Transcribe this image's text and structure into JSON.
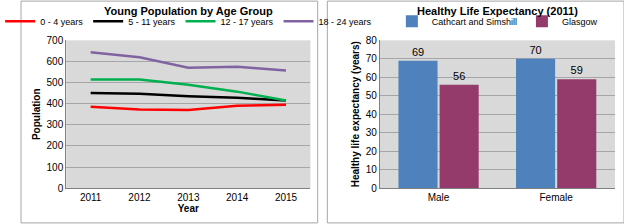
{
  "chart_data": [
    {
      "type": "line",
      "title": "Young Population by Age Group",
      "x_label": "Year",
      "y_label": "Population",
      "categories": [
        "2011",
        "2012",
        "2013",
        "2014",
        "2015"
      ],
      "series": [
        {
          "name": "0 - 4 years",
          "color": "#ff0000",
          "values": [
            385,
            372,
            370,
            390,
            395
          ]
        },
        {
          "name": "5 - 11 years",
          "color": "#000000",
          "values": [
            450,
            447,
            435,
            428,
            415
          ]
        },
        {
          "name": "12 - 17 years",
          "color": "#00b050",
          "values": [
            515,
            515,
            490,
            457,
            415
          ]
        },
        {
          "name": "18 - 24 years",
          "color": "#8064a2",
          "values": [
            643,
            620,
            570,
            575,
            557
          ]
        }
      ],
      "ylim": [
        0,
        700
      ],
      "yticks": [
        0,
        100,
        200,
        300,
        400,
        500,
        600,
        700
      ],
      "grid": true,
      "legend": "top"
    },
    {
      "type": "bar",
      "title": "Healthy Life Expectancy (2011)",
      "y_label": "Healthy life expectancy (years)",
      "categories": [
        "Male",
        "Female"
      ],
      "series": [
        {
          "name": "Cathcart and Simshill",
          "color": "#4f81bd",
          "values": [
            69,
            70
          ]
        },
        {
          "name": "Glasgow",
          "color": "#953b6b",
          "values": [
            56,
            59
          ]
        }
      ],
      "ylim": [
        0,
        80
      ],
      "yticks": [
        0,
        10,
        20,
        30,
        40,
        50,
        60,
        70,
        80
      ],
      "grid": true,
      "legend": "top",
      "data_labels": true
    }
  ]
}
